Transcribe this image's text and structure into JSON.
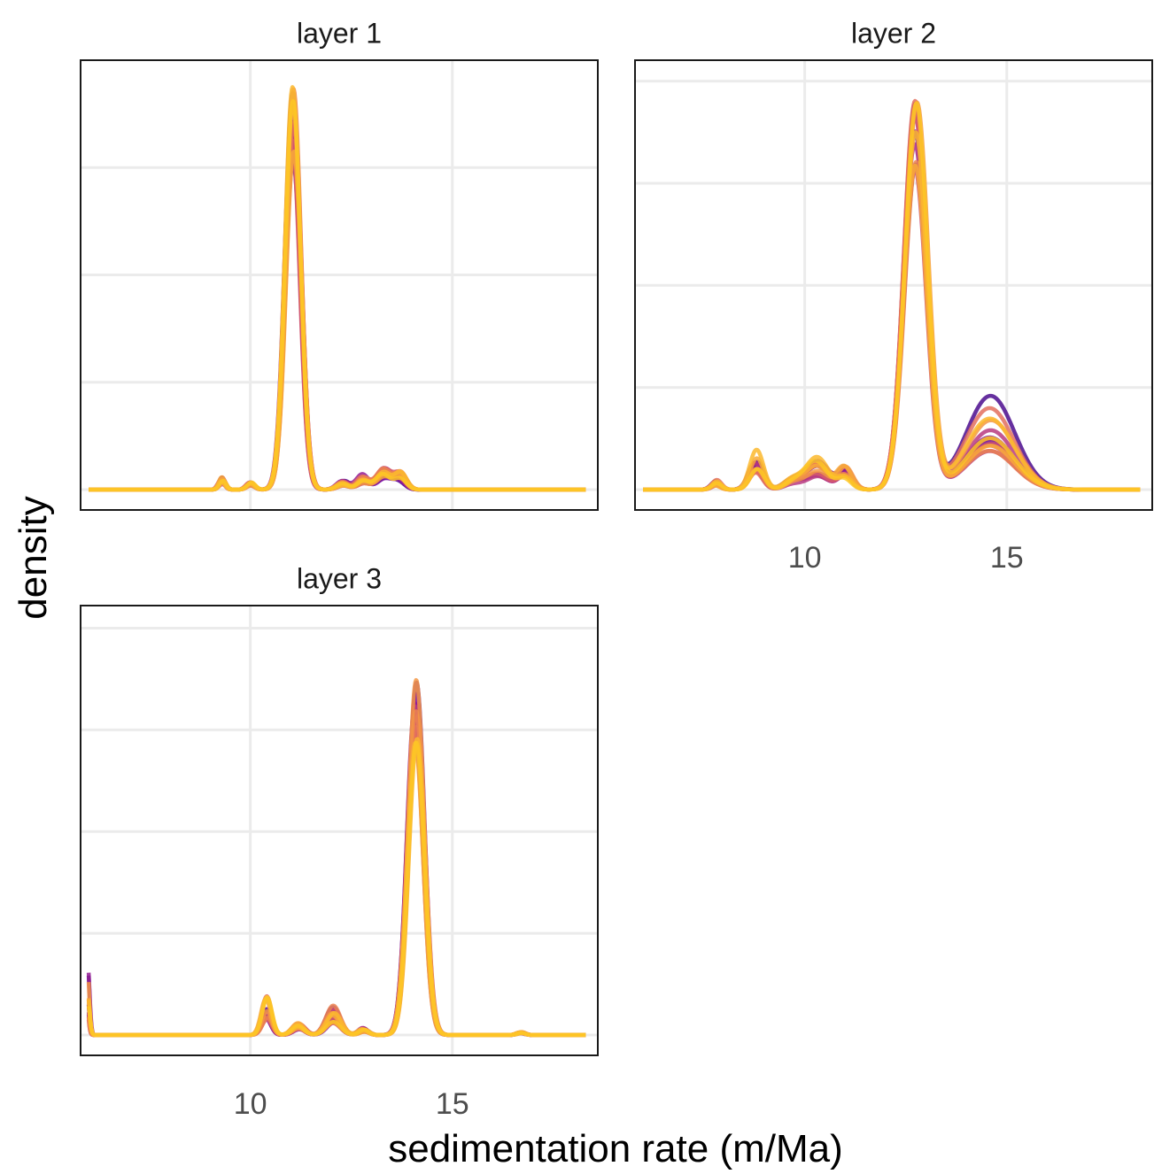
{
  "chart_data": {
    "type": "line",
    "kind": "faceted density curves",
    "xlabel": "sedimentation rate (m/Ma)",
    "ylabel": "density",
    "xlim": [
      5.8,
      18.6
    ],
    "x_ticks": [
      10,
      15
    ],
    "grid": true,
    "legend": "none",
    "palette": [
      "#4b0c8e",
      "#7a0f9e",
      "#a2248c",
      "#c2437a",
      "#dd6466",
      "#ef8a4c",
      "#f9ac36",
      "#fdc725"
    ],
    "panels": [
      {
        "title": "layer 1",
        "show_x_ticks": false,
        "ylim": [
          0,
          1.0
        ],
        "y_gridlines": [
          0,
          0.25,
          0.5,
          0.75
        ],
        "components": [
          {
            "center": 11.05,
            "sd": 0.19,
            "height": 0.92
          },
          {
            "center": 9.3,
            "sd": 0.08,
            "height": 0.022
          },
          {
            "center": 10.0,
            "sd": 0.1,
            "height": 0.012
          },
          {
            "center": 12.3,
            "sd": 0.15,
            "height": 0.015
          },
          {
            "center": 12.8,
            "sd": 0.15,
            "height": 0.025
          },
          {
            "center": 13.3,
            "sd": 0.18,
            "height": 0.035
          },
          {
            "center": 13.7,
            "sd": 0.15,
            "height": 0.03
          }
        ]
      },
      {
        "title": "layer 2",
        "show_x_ticks": true,
        "ylim": [
          0,
          0.925
        ],
        "y_gridlines": [
          0,
          0.22,
          0.44,
          0.66,
          0.88
        ],
        "components": [
          {
            "center": 12.75,
            "sd": 0.28,
            "height": 0.83
          },
          {
            "center": 14.6,
            "sd": 0.6,
            "height": 0.14
          },
          {
            "center": 8.8,
            "sd": 0.17,
            "height": 0.06
          },
          {
            "center": 7.8,
            "sd": 0.12,
            "height": 0.015
          },
          {
            "center": 10.3,
            "sd": 0.28,
            "height": 0.05
          },
          {
            "center": 11.0,
            "sd": 0.18,
            "height": 0.035
          },
          {
            "center": 9.7,
            "sd": 0.22,
            "height": 0.015
          }
        ]
      },
      {
        "title": "layer 3",
        "show_x_ticks": true,
        "ylim": [
          0,
          0.95
        ],
        "y_gridlines": [
          0,
          0.225,
          0.45,
          0.675,
          0.9
        ],
        "components": [
          {
            "center": 14.1,
            "sd": 0.2,
            "height": 0.78
          },
          {
            "center": 5.95,
            "sd": 0.05,
            "height": 0.12
          },
          {
            "center": 10.4,
            "sd": 0.12,
            "height": 0.06
          },
          {
            "center": 11.2,
            "sd": 0.15,
            "height": 0.02
          },
          {
            "center": 12.05,
            "sd": 0.18,
            "height": 0.045
          },
          {
            "center": 12.8,
            "sd": 0.12,
            "height": 0.012
          },
          {
            "center": 16.7,
            "sd": 0.1,
            "height": 0.005
          }
        ]
      }
    ]
  }
}
